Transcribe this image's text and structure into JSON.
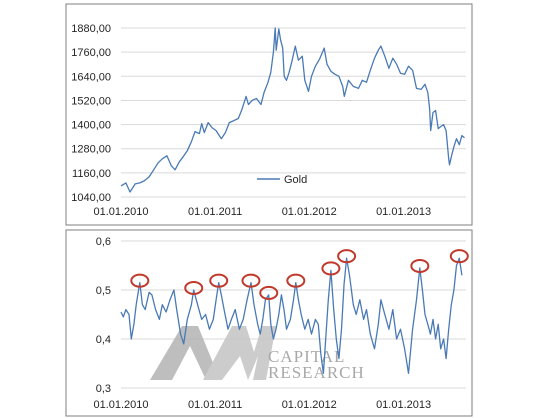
{
  "colors": {
    "series": "#4a7ab5",
    "grid": "#d9d9d9",
    "frame": "#7f7f7f",
    "marker": "#c0392b",
    "watermark": "#a6a6a6"
  },
  "watermark": {
    "mark": "AM",
    "line1": "CAPITAL",
    "line2": "RESEARCH"
  },
  "chart_data": [
    {
      "type": "line",
      "title": "",
      "legend": {
        "entries": [
          "Gold"
        ],
        "placement": "center-right"
      },
      "grid": "horizontal",
      "xlim": [
        "2010-01-01",
        "2013-08-31"
      ],
      "ylim": [
        1040,
        1900
      ],
      "x_ticks": [
        "2010-01-01",
        "2011-01-01",
        "2012-01-01",
        "2013-01-01"
      ],
      "x_tick_labels": [
        "01.01.2010",
        "01.01.2011",
        "01.01.2012",
        "01.01.2013"
      ],
      "y_ticks": [
        1040,
        1160,
        1280,
        1400,
        1520,
        1640,
        1760,
        1880
      ],
      "y_tick_labels": [
        "1040,00",
        "1160,00",
        "1280,00",
        "1400,00",
        "1520,00",
        "1640,00",
        "1760,00",
        "1880,00"
      ],
      "series": [
        {
          "name": "Gold",
          "points": [
            [
              "2010-01-01",
              1095
            ],
            [
              "2010-01-20",
              1110
            ],
            [
              "2010-02-05",
              1065
            ],
            [
              "2010-02-25",
              1105
            ],
            [
              "2010-03-15",
              1110
            ],
            [
              "2010-04-01",
              1120
            ],
            [
              "2010-04-20",
              1140
            ],
            [
              "2010-05-10",
              1180
            ],
            [
              "2010-05-25",
              1210
            ],
            [
              "2010-06-10",
              1230
            ],
            [
              "2010-06-28",
              1245
            ],
            [
              "2010-07-15",
              1195
            ],
            [
              "2010-07-30",
              1175
            ],
            [
              "2010-08-15",
              1215
            ],
            [
              "2010-08-30",
              1240
            ],
            [
              "2010-09-15",
              1270
            ],
            [
              "2010-10-01",
              1315
            ],
            [
              "2010-10-15",
              1365
            ],
            [
              "2010-11-01",
              1355
            ],
            [
              "2010-11-10",
              1405
            ],
            [
              "2010-11-20",
              1360
            ],
            [
              "2010-12-05",
              1410
            ],
            [
              "2010-12-20",
              1385
            ],
            [
              "2011-01-05",
              1370
            ],
            [
              "2011-01-25",
              1330
            ],
            [
              "2011-02-10",
              1360
            ],
            [
              "2011-02-25",
              1410
            ],
            [
              "2011-03-15",
              1420
            ],
            [
              "2011-04-01",
              1430
            ],
            [
              "2011-04-15",
              1475
            ],
            [
              "2011-05-01",
              1540
            ],
            [
              "2011-05-10",
              1500
            ],
            [
              "2011-05-25",
              1520
            ],
            [
              "2011-06-10",
              1530
            ],
            [
              "2011-06-28",
              1500
            ],
            [
              "2011-07-10",
              1560
            ],
            [
              "2011-07-25",
              1610
            ],
            [
              "2011-08-05",
              1660
            ],
            [
              "2011-08-15",
              1760
            ],
            [
              "2011-08-22",
              1880
            ],
            [
              "2011-08-26",
              1770
            ],
            [
              "2011-09-05",
              1875
            ],
            [
              "2011-09-12",
              1820
            ],
            [
              "2011-09-20",
              1780
            ],
            [
              "2011-09-26",
              1640
            ],
            [
              "2011-10-05",
              1620
            ],
            [
              "2011-10-15",
              1660
            ],
            [
              "2011-10-25",
              1710
            ],
            [
              "2011-11-08",
              1790
            ],
            [
              "2011-11-20",
              1720
            ],
            [
              "2011-12-05",
              1740
            ],
            [
              "2011-12-15",
              1620
            ],
            [
              "2011-12-29",
              1565
            ],
            [
              "2012-01-10",
              1640
            ],
            [
              "2012-01-25",
              1690
            ],
            [
              "2012-02-10",
              1725
            ],
            [
              "2012-02-28",
              1780
            ],
            [
              "2012-03-10",
              1700
            ],
            [
              "2012-03-25",
              1665
            ],
            [
              "2012-04-10",
              1650
            ],
            [
              "2012-04-25",
              1640
            ],
            [
              "2012-05-10",
              1590
            ],
            [
              "2012-05-16",
              1540
            ],
            [
              "2012-06-01",
              1620
            ],
            [
              "2012-06-20",
              1590
            ],
            [
              "2012-07-10",
              1580
            ],
            [
              "2012-07-25",
              1620
            ],
            [
              "2012-08-10",
              1610
            ],
            [
              "2012-08-25",
              1670
            ],
            [
              "2012-09-10",
              1730
            ],
            [
              "2012-09-25",
              1770
            ],
            [
              "2012-10-05",
              1790
            ],
            [
              "2012-10-20",
              1740
            ],
            [
              "2012-11-05",
              1680
            ],
            [
              "2012-11-20",
              1730
            ],
            [
              "2012-12-05",
              1700
            ],
            [
              "2012-12-20",
              1655
            ],
            [
              "2013-01-05",
              1650
            ],
            [
              "2013-01-20",
              1690
            ],
            [
              "2013-02-05",
              1670
            ],
            [
              "2013-02-20",
              1580
            ],
            [
              "2013-03-10",
              1575
            ],
            [
              "2013-03-25",
              1600
            ],
            [
              "2013-04-05",
              1560
            ],
            [
              "2013-04-12",
              1480
            ],
            [
              "2013-04-16",
              1370
            ],
            [
              "2013-04-25",
              1460
            ],
            [
              "2013-05-05",
              1470
            ],
            [
              "2013-05-15",
              1380
            ],
            [
              "2013-05-25",
              1390
            ],
            [
              "2013-06-05",
              1400
            ],
            [
              "2013-06-15",
              1370
            ],
            [
              "2013-06-25",
              1230
            ],
            [
              "2013-06-28",
              1200
            ],
            [
              "2013-07-05",
              1240
            ],
            [
              "2013-07-15",
              1290
            ],
            [
              "2013-07-25",
              1330
            ],
            [
              "2013-08-05",
              1300
            ],
            [
              "2013-08-15",
              1345
            ],
            [
              "2013-08-25",
              1335
            ]
          ]
        }
      ]
    },
    {
      "type": "line",
      "title": "",
      "grid": "horizontal",
      "xlim": [
        "2010-01-01",
        "2013-08-31"
      ],
      "ylim": [
        0.3,
        0.6
      ],
      "x_ticks": [
        "2010-01-01",
        "2011-01-01",
        "2012-01-01",
        "2013-01-01"
      ],
      "x_tick_labels": [
        "01.01.2010",
        "01.01.2011",
        "01.01.2012",
        "01.01.2013"
      ],
      "y_ticks": [
        0.3,
        0.4,
        0.5,
        0.6
      ],
      "y_tick_labels": [
        "0,3",
        "0,4",
        "0,5",
        "0,6"
      ],
      "series": [
        {
          "points": [
            [
              "2010-01-01",
              0.455
            ],
            [
              "2010-01-10",
              0.445
            ],
            [
              "2010-01-20",
              0.46
            ],
            [
              "2010-02-01",
              0.45
            ],
            [
              "2010-02-10",
              0.4
            ],
            [
              "2010-02-20",
              0.43
            ],
            [
              "2010-03-01",
              0.47
            ],
            [
              "2010-03-15",
              0.515
            ],
            [
              "2010-03-25",
              0.47
            ],
            [
              "2010-04-05",
              0.46
            ],
            [
              "2010-04-20",
              0.495
            ],
            [
              "2010-05-01",
              0.49
            ],
            [
              "2010-05-15",
              0.46
            ],
            [
              "2010-05-30",
              0.44
            ],
            [
              "2010-06-10",
              0.47
            ],
            [
              "2010-06-25",
              0.455
            ],
            [
              "2010-07-10",
              0.48
            ],
            [
              "2010-07-25",
              0.5
            ],
            [
              "2010-08-05",
              0.46
            ],
            [
              "2010-08-20",
              0.41
            ],
            [
              "2010-09-01",
              0.39
            ],
            [
              "2010-09-15",
              0.44
            ],
            [
              "2010-10-01",
              0.47
            ],
            [
              "2010-10-10",
              0.5
            ],
            [
              "2010-10-25",
              0.47
            ],
            [
              "2010-11-10",
              0.44
            ],
            [
              "2010-11-25",
              0.45
            ],
            [
              "2010-12-10",
              0.42
            ],
            [
              "2010-12-25",
              0.44
            ],
            [
              "2011-01-05",
              0.48
            ],
            [
              "2011-01-15",
              0.515
            ],
            [
              "2011-01-25",
              0.49
            ],
            [
              "2011-02-05",
              0.46
            ],
            [
              "2011-02-20",
              0.42
            ],
            [
              "2011-03-05",
              0.44
            ],
            [
              "2011-03-20",
              0.46
            ],
            [
              "2011-04-05",
              0.42
            ],
            [
              "2011-04-20",
              0.44
            ],
            [
              "2011-05-05",
              0.48
            ],
            [
              "2011-05-20",
              0.515
            ],
            [
              "2011-06-01",
              0.47
            ],
            [
              "2011-06-15",
              0.43
            ],
            [
              "2011-06-25",
              0.41
            ],
            [
              "2011-07-05",
              0.44
            ],
            [
              "2011-07-15",
              0.48
            ],
            [
              "2011-07-28",
              0.49
            ],
            [
              "2011-08-05",
              0.43
            ],
            [
              "2011-08-15",
              0.4
            ],
            [
              "2011-08-25",
              0.42
            ],
            [
              "2011-09-05",
              0.45
            ],
            [
              "2011-09-15",
              0.49
            ],
            [
              "2011-09-25",
              0.46
            ],
            [
              "2011-10-05",
              0.42
            ],
            [
              "2011-10-20",
              0.44
            ],
            [
              "2011-11-01",
              0.48
            ],
            [
              "2011-11-10",
              0.515
            ],
            [
              "2011-11-20",
              0.48
            ],
            [
              "2011-12-01",
              0.45
            ],
            [
              "2011-12-15",
              0.42
            ],
            [
              "2011-12-28",
              0.44
            ],
            [
              "2012-01-10",
              0.41
            ],
            [
              "2012-01-25",
              0.44
            ],
            [
              "2012-02-05",
              0.43
            ],
            [
              "2012-02-15",
              0.37
            ],
            [
              "2012-02-25",
              0.33
            ],
            [
              "2012-03-05",
              0.4
            ],
            [
              "2012-03-15",
              0.48
            ],
            [
              "2012-03-25",
              0.54
            ],
            [
              "2012-04-05",
              0.46
            ],
            [
              "2012-04-15",
              0.4
            ],
            [
              "2012-04-25",
              0.36
            ],
            [
              "2012-05-05",
              0.42
            ],
            [
              "2012-05-15",
              0.51
            ],
            [
              "2012-05-25",
              0.565
            ],
            [
              "2012-06-05",
              0.53
            ],
            [
              "2012-06-20",
              0.47
            ],
            [
              "2012-07-01",
              0.45
            ],
            [
              "2012-07-15",
              0.48
            ],
            [
              "2012-07-30",
              0.44
            ],
            [
              "2012-08-10",
              0.46
            ],
            [
              "2012-08-25",
              0.41
            ],
            [
              "2012-09-10",
              0.38
            ],
            [
              "2012-09-25",
              0.43
            ],
            [
              "2012-10-05",
              0.48
            ],
            [
              "2012-10-20",
              0.45
            ],
            [
              "2012-11-05",
              0.42
            ],
            [
              "2012-11-20",
              0.46
            ],
            [
              "2012-12-05",
              0.4
            ],
            [
              "2012-12-20",
              0.42
            ],
            [
              "2013-01-05",
              0.38
            ],
            [
              "2013-01-20",
              0.33
            ],
            [
              "2013-02-05",
              0.42
            ],
            [
              "2013-02-20",
              0.48
            ],
            [
              "2013-03-05",
              0.545
            ],
            [
              "2013-03-15",
              0.5
            ],
            [
              "2013-03-25",
              0.45
            ],
            [
              "2013-04-05",
              0.43
            ],
            [
              "2013-04-15",
              0.41
            ],
            [
              "2013-04-25",
              0.44
            ],
            [
              "2013-05-05",
              0.4
            ],
            [
              "2013-05-15",
              0.43
            ],
            [
              "2013-05-25",
              0.38
            ],
            [
              "2013-06-05",
              0.4
            ],
            [
              "2013-06-15",
              0.36
            ],
            [
              "2013-06-25",
              0.42
            ],
            [
              "2013-07-05",
              0.47
            ],
            [
              "2013-07-15",
              0.5
            ],
            [
              "2013-07-25",
              0.55
            ],
            [
              "2013-08-05",
              0.565
            ],
            [
              "2013-08-15",
              0.53
            ]
          ]
        }
      ],
      "highlighted_peaks": [
        [
          "2010-03-15",
          0.515
        ],
        [
          "2010-10-10",
          0.5
        ],
        [
          "2011-05-20",
          0.515
        ],
        [
          "2011-07-28",
          0.49
        ],
        [
          "2011-11-10",
          0.515
        ],
        [
          "2012-03-25",
          0.54
        ],
        [
          "2012-05-25",
          0.565
        ],
        [
          "2013-03-05",
          0.545
        ],
        [
          "2013-08-05",
          0.565
        ],
        [
          "2011-01-15",
          0.515
        ]
      ]
    }
  ]
}
